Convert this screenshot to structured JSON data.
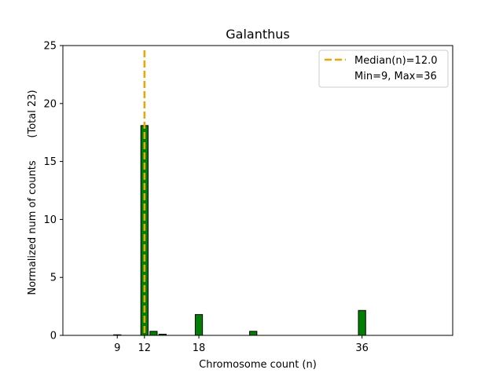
{
  "chart_data": {
    "type": "bar",
    "title": "Galanthus",
    "xlabel": "Chromosome count (n)",
    "ylabel": "Normalized num of counts",
    "ylabel_note": "(Total 23)",
    "xlim": [
      3,
      46
    ],
    "ylim": [
      0,
      25
    ],
    "x_ticks": [
      9,
      12,
      18,
      36
    ],
    "y_ticks": [
      0,
      5,
      10,
      15,
      20,
      25
    ],
    "bar_width": 0.8,
    "bar_color": "#008000",
    "bar_edge_color": "#000000",
    "bars": [
      {
        "x": 9,
        "value": 0.05
      },
      {
        "x": 12,
        "value": 18.1
      },
      {
        "x": 13,
        "value": 0.35
      },
      {
        "x": 14,
        "value": 0.1
      },
      {
        "x": 18,
        "value": 1.8
      },
      {
        "x": 24,
        "value": 0.35
      },
      {
        "x": 36,
        "value": 2.15
      }
    ],
    "median_line": {
      "x": 12,
      "color": "#f5a300",
      "label": "Median(n)=12.0"
    },
    "legend": {
      "placement": "top-right",
      "entries": [
        "Median(n)=12.0",
        "Min=9, Max=36"
      ]
    },
    "grid": false
  }
}
